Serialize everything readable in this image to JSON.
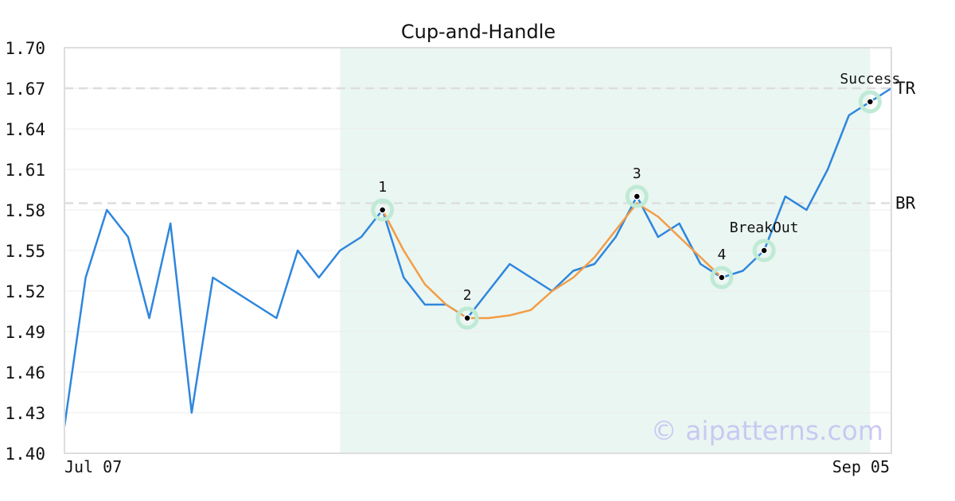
{
  "chart_data": {
    "type": "line",
    "title": "Cup-and-Handle",
    "xlabel": "",
    "ylabel": "",
    "ylim": [
      1.4,
      1.7
    ],
    "yticks": [
      "1.40",
      "1.43",
      "1.46",
      "1.49",
      "1.52",
      "1.55",
      "1.58",
      "1.61",
      "1.64",
      "1.67",
      "1.70"
    ],
    "xtick_labels": {
      "first": "Jul 07",
      "last": "Sep 05"
    },
    "grid": "horizontal",
    "colors": {
      "price": "#2e86de",
      "pattern": "#f39c45",
      "highlight_band": "#eaf6f1",
      "marker_ring": "#bfead6",
      "level_line": "#dddddd",
      "frame": "#dddddd"
    },
    "series": [
      {
        "role": "price",
        "values": [
          1.42,
          1.53,
          1.58,
          1.56,
          1.5,
          1.57,
          1.43,
          1.53,
          1.52,
          1.51,
          1.5,
          1.55,
          1.53,
          1.55,
          1.56,
          1.58,
          1.53,
          1.51,
          1.51,
          1.5,
          1.52,
          1.54,
          1.53,
          1.52,
          1.535,
          1.54,
          1.56,
          1.59,
          1.56,
          1.57,
          1.54,
          1.53,
          1.535,
          1.55,
          1.59,
          1.58,
          1.61,
          1.65,
          1.66,
          1.67
        ]
      },
      {
        "role": "pattern",
        "x_start": 15,
        "values": [
          1.58,
          1.55,
          1.525,
          1.51,
          1.5,
          1.5,
          1.502,
          1.506,
          1.52,
          1.53,
          1.545,
          1.565,
          1.585,
          1.575,
          1.56,
          1.545,
          1.53
        ]
      }
    ],
    "highlight_range": [
      13,
      38
    ],
    "levels": [
      {
        "label": "TR",
        "value": 1.67
      },
      {
        "label": "BR",
        "value": 1.585
      }
    ],
    "points": [
      {
        "label": "1",
        "x": 15,
        "y": 1.58
      },
      {
        "label": "2",
        "x": 19,
        "y": 1.5
      },
      {
        "label": "3",
        "x": 27,
        "y": 1.59
      },
      {
        "label": "4",
        "x": 31,
        "y": 1.53
      },
      {
        "label": "BreakOut",
        "x": 33,
        "y": 1.55
      },
      {
        "label": "Success",
        "x": 38,
        "y": 1.66
      }
    ],
    "watermark": "© aipatterns.com"
  }
}
